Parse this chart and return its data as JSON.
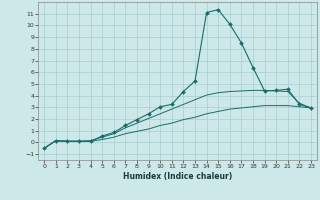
{
  "xlabel": "Humidex (Indice chaleur)",
  "bg_color": "#cce8e8",
  "grid_color": "#aacece",
  "line_color": "#1a6b6b",
  "x_values": [
    0,
    1,
    2,
    3,
    4,
    5,
    6,
    7,
    8,
    9,
    10,
    11,
    12,
    13,
    14,
    15,
    16,
    17,
    18,
    19,
    20,
    21,
    22,
    23
  ],
  "line1": [
    -0.5,
    0.15,
    0.1,
    0.1,
    0.1,
    0.55,
    0.85,
    1.45,
    1.95,
    2.45,
    3.05,
    3.25,
    4.35,
    5.25,
    11.1,
    11.35,
    10.1,
    8.5,
    6.4,
    4.4,
    4.45,
    4.55,
    3.25,
    2.95
  ],
  "line2": [
    -0.5,
    0.15,
    0.1,
    0.1,
    0.15,
    0.45,
    0.75,
    1.25,
    1.65,
    2.05,
    2.45,
    2.85,
    3.25,
    3.65,
    4.05,
    4.25,
    4.35,
    4.4,
    4.45,
    4.45,
    4.4,
    4.35,
    3.35,
    2.95
  ],
  "line3": [
    -0.5,
    0.15,
    0.1,
    0.1,
    0.1,
    0.25,
    0.45,
    0.75,
    0.95,
    1.15,
    1.45,
    1.65,
    1.95,
    2.15,
    2.45,
    2.65,
    2.85,
    2.95,
    3.05,
    3.15,
    3.15,
    3.15,
    3.05,
    2.95
  ],
  "ylim": [
    -1.5,
    12
  ],
  "xlim": [
    -0.5,
    23.5
  ],
  "yticks": [
    -1,
    0,
    1,
    2,
    3,
    4,
    5,
    6,
    7,
    8,
    9,
    10,
    11
  ],
  "xticks": [
    0,
    1,
    2,
    3,
    4,
    5,
    6,
    7,
    8,
    9,
    10,
    11,
    12,
    13,
    14,
    15,
    16,
    17,
    18,
    19,
    20,
    21,
    22,
    23
  ]
}
